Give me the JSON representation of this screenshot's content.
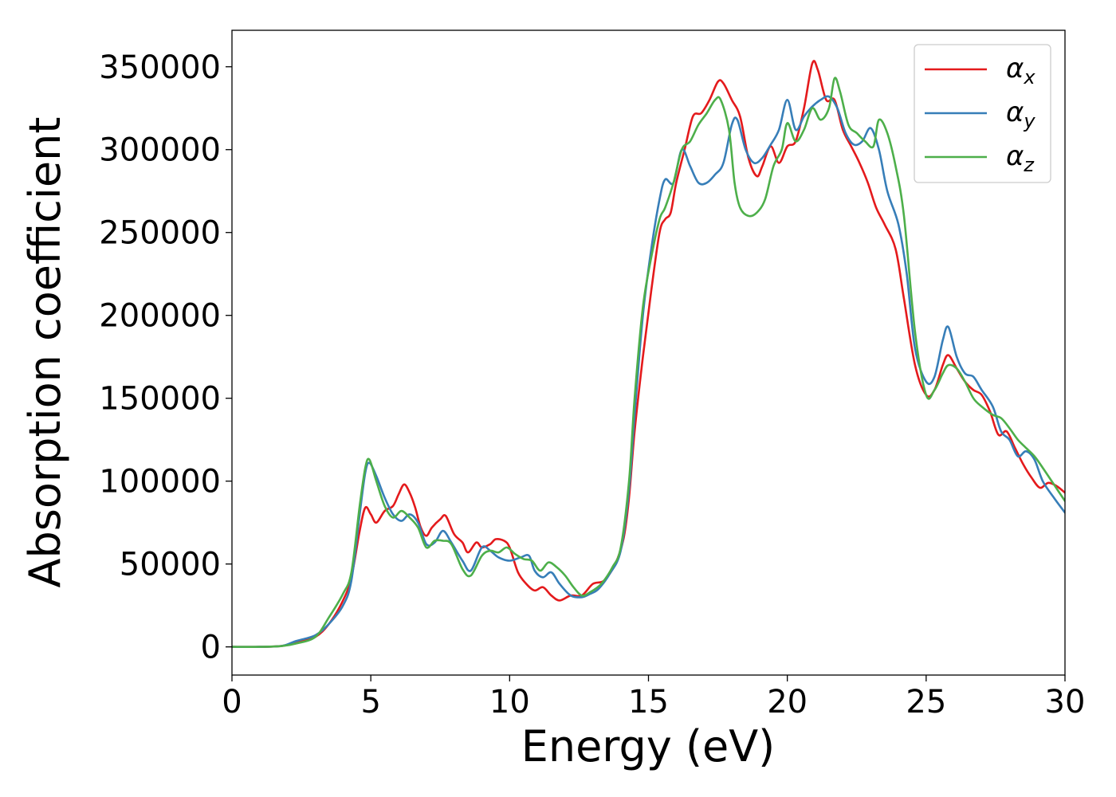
{
  "chart_data": {
    "type": "line",
    "title": "",
    "xlabel": "Energy (eV)",
    "ylabel": "Absorption coefficient",
    "xlim": [
      0,
      30
    ],
    "ylim": [
      -17000,
      372000
    ],
    "x_ticks": [
      0,
      5,
      10,
      15,
      20,
      25,
      30
    ],
    "x_tick_labels": [
      "0",
      "5",
      "10",
      "15",
      "20",
      "25",
      "30"
    ],
    "y_ticks": [
      0,
      50000,
      100000,
      150000,
      200000,
      250000,
      300000,
      350000
    ],
    "y_tick_labels": [
      "0",
      "50000",
      "100000",
      "150000",
      "200000",
      "250000",
      "300000",
      "350000"
    ],
    "grid": false,
    "legend_position": "top-right",
    "series": [
      {
        "name": "α_x",
        "legend_main": "α",
        "legend_sub": "x",
        "color": "#e41a1c",
        "points": [
          [
            0,
            0
          ],
          [
            1,
            0
          ],
          [
            1.8,
            600
          ],
          [
            2.3,
            2500
          ],
          [
            3,
            6000
          ],
          [
            3.5,
            14000
          ],
          [
            4,
            28000
          ],
          [
            4.3,
            42000
          ],
          [
            4.6,
            70000
          ],
          [
            4.8,
            84000
          ],
          [
            5,
            80000
          ],
          [
            5.2,
            75000
          ],
          [
            5.5,
            82000
          ],
          [
            5.8,
            85000
          ],
          [
            6,
            92000
          ],
          [
            6.2,
            98000
          ],
          [
            6.4,
            93000
          ],
          [
            6.6,
            84000
          ],
          [
            6.8,
            72000
          ],
          [
            7,
            67000
          ],
          [
            7.2,
            72000
          ],
          [
            7.5,
            77000
          ],
          [
            7.7,
            79000
          ],
          [
            8,
            68000
          ],
          [
            8.3,
            63000
          ],
          [
            8.5,
            57000
          ],
          [
            8.8,
            63000
          ],
          [
            9,
            60000
          ],
          [
            9.3,
            62000
          ],
          [
            9.5,
            65000
          ],
          [
            9.8,
            64000
          ],
          [
            10,
            60000
          ],
          [
            10.3,
            45000
          ],
          [
            10.6,
            38000
          ],
          [
            10.9,
            34000
          ],
          [
            11.2,
            36000
          ],
          [
            11.5,
            31000
          ],
          [
            11.8,
            28000
          ],
          [
            12.2,
            31000
          ],
          [
            12.6,
            31000
          ],
          [
            13,
            38000
          ],
          [
            13.4,
            40000
          ],
          [
            13.8,
            50000
          ],
          [
            14.1,
            65000
          ],
          [
            14.3,
            90000
          ],
          [
            14.5,
            130000
          ],
          [
            14.8,
            175000
          ],
          [
            15.1,
            215000
          ],
          [
            15.4,
            250000
          ],
          [
            15.6,
            258000
          ],
          [
            15.8,
            262000
          ],
          [
            16,
            280000
          ],
          [
            16.3,
            300000
          ],
          [
            16.6,
            320000
          ],
          [
            16.9,
            322000
          ],
          [
            17.2,
            330000
          ],
          [
            17.5,
            341000
          ],
          [
            17.7,
            340000
          ],
          [
            18,
            330000
          ],
          [
            18.3,
            320000
          ],
          [
            18.6,
            295000
          ],
          [
            18.9,
            284000
          ],
          [
            19.1,
            290000
          ],
          [
            19.4,
            302000
          ],
          [
            19.7,
            292000
          ],
          [
            20,
            302000
          ],
          [
            20.3,
            305000
          ],
          [
            20.6,
            325000
          ],
          [
            20.9,
            352000
          ],
          [
            21.1,
            348000
          ],
          [
            21.4,
            330000
          ],
          [
            21.7,
            330000
          ],
          [
            22,
            312000
          ],
          [
            22.3,
            302000
          ],
          [
            22.6,
            292000
          ],
          [
            22.9,
            280000
          ],
          [
            23.2,
            265000
          ],
          [
            23.5,
            255000
          ],
          [
            23.9,
            240000
          ],
          [
            24.2,
            210000
          ],
          [
            24.6,
            170000
          ],
          [
            25,
            152000
          ],
          [
            25.3,
            155000
          ],
          [
            25.6,
            170000
          ],
          [
            25.8,
            176000
          ],
          [
            26.1,
            168000
          ],
          [
            26.4,
            160000
          ],
          [
            26.7,
            155000
          ],
          [
            27,
            152000
          ],
          [
            27.3,
            142000
          ],
          [
            27.6,
            128000
          ],
          [
            27.9,
            130000
          ],
          [
            28.2,
            120000
          ],
          [
            28.5,
            110000
          ],
          [
            28.8,
            102000
          ],
          [
            29.1,
            96000
          ],
          [
            29.4,
            99000
          ],
          [
            29.7,
            97000
          ],
          [
            30,
            93000
          ]
        ]
      },
      {
        "name": "α_y",
        "legend_main": "α",
        "legend_sub": "y",
        "color": "#377eb8",
        "points": [
          [
            0,
            0
          ],
          [
            1,
            0
          ],
          [
            1.8,
            600
          ],
          [
            2.3,
            3500
          ],
          [
            3,
            7000
          ],
          [
            3.5,
            14000
          ],
          [
            4,
            25000
          ],
          [
            4.3,
            40000
          ],
          [
            4.6,
            80000
          ],
          [
            4.8,
            105000
          ],
          [
            4.95,
            111000
          ],
          [
            5.2,
            103000
          ],
          [
            5.5,
            90000
          ],
          [
            5.8,
            80000
          ],
          [
            6.1,
            76000
          ],
          [
            6.4,
            80000
          ],
          [
            6.7,
            75000
          ],
          [
            7,
            62000
          ],
          [
            7.3,
            63000
          ],
          [
            7.6,
            70000
          ],
          [
            7.9,
            63000
          ],
          [
            8.3,
            52000
          ],
          [
            8.6,
            46000
          ],
          [
            9,
            60000
          ],
          [
            9.3,
            58000
          ],
          [
            9.6,
            54000
          ],
          [
            10,
            52000
          ],
          [
            10.4,
            54000
          ],
          [
            10.7,
            55000
          ],
          [
            10.9,
            46000
          ],
          [
            11.2,
            42000
          ],
          [
            11.5,
            45000
          ],
          [
            11.8,
            38000
          ],
          [
            12.2,
            31000
          ],
          [
            12.6,
            30000
          ],
          [
            12.9,
            32000
          ],
          [
            13.2,
            35000
          ],
          [
            13.6,
            44000
          ],
          [
            14,
            58000
          ],
          [
            14.3,
            95000
          ],
          [
            14.5,
            140000
          ],
          [
            14.8,
            200000
          ],
          [
            15.1,
            240000
          ],
          [
            15.4,
            270000
          ],
          [
            15.6,
            282000
          ],
          [
            15.9,
            280000
          ],
          [
            16.2,
            300000
          ],
          [
            16.5,
            290000
          ],
          [
            16.8,
            280000
          ],
          [
            17.1,
            280000
          ],
          [
            17.4,
            285000
          ],
          [
            17.7,
            292000
          ],
          [
            18,
            315000
          ],
          [
            18.2,
            318000
          ],
          [
            18.5,
            300000
          ],
          [
            18.8,
            292000
          ],
          [
            19.1,
            295000
          ],
          [
            19.4,
            303000
          ],
          [
            19.7,
            312000
          ],
          [
            20,
            330000
          ],
          [
            20.3,
            312000
          ],
          [
            20.6,
            320000
          ],
          [
            20.9,
            326000
          ],
          [
            21.2,
            330000
          ],
          [
            21.5,
            332000
          ],
          [
            21.8,
            325000
          ],
          [
            22.1,
            310000
          ],
          [
            22.4,
            303000
          ],
          [
            22.7,
            305000
          ],
          [
            23,
            313000
          ],
          [
            23.3,
            300000
          ],
          [
            23.6,
            275000
          ],
          [
            24,
            255000
          ],
          [
            24.3,
            225000
          ],
          [
            24.6,
            180000
          ],
          [
            25,
            160000
          ],
          [
            25.3,
            163000
          ],
          [
            25.6,
            185000
          ],
          [
            25.8,
            193000
          ],
          [
            26.1,
            175000
          ],
          [
            26.4,
            165000
          ],
          [
            26.7,
            163000
          ],
          [
            27,
            155000
          ],
          [
            27.4,
            145000
          ],
          [
            27.7,
            130000
          ],
          [
            28,
            125000
          ],
          [
            28.3,
            115000
          ],
          [
            28.6,
            118000
          ],
          [
            28.9,
            113000
          ],
          [
            29.2,
            100000
          ],
          [
            29.6,
            90000
          ],
          [
            30,
            81000
          ]
        ]
      },
      {
        "name": "α_z",
        "legend_main": "α",
        "legend_sub": "z",
        "color": "#4daf4a",
        "points": [
          [
            0,
            0
          ],
          [
            1,
            0
          ],
          [
            1.8,
            500
          ],
          [
            2.3,
            2000
          ],
          [
            3,
            6000
          ],
          [
            3.5,
            18000
          ],
          [
            4,
            32000
          ],
          [
            4.3,
            45000
          ],
          [
            4.6,
            85000
          ],
          [
            4.8,
            108000
          ],
          [
            4.95,
            113000
          ],
          [
            5.2,
            100000
          ],
          [
            5.5,
            85000
          ],
          [
            5.8,
            78000
          ],
          [
            6.1,
            82000
          ],
          [
            6.4,
            78000
          ],
          [
            6.7,
            72000
          ],
          [
            7,
            60000
          ],
          [
            7.3,
            64000
          ],
          [
            7.6,
            64000
          ],
          [
            7.9,
            62000
          ],
          [
            8.3,
            47000
          ],
          [
            8.6,
            43000
          ],
          [
            9,
            55000
          ],
          [
            9.3,
            58000
          ],
          [
            9.6,
            57000
          ],
          [
            9.9,
            60000
          ],
          [
            10.2,
            56000
          ],
          [
            10.5,
            53000
          ],
          [
            10.8,
            52000
          ],
          [
            11.1,
            46000
          ],
          [
            11.4,
            51000
          ],
          [
            11.7,
            48000
          ],
          [
            12,
            43000
          ],
          [
            12.3,
            36000
          ],
          [
            12.6,
            31000
          ],
          [
            12.9,
            33000
          ],
          [
            13.3,
            38000
          ],
          [
            13.7,
            48000
          ],
          [
            14,
            60000
          ],
          [
            14.3,
            100000
          ],
          [
            14.5,
            150000
          ],
          [
            14.8,
            205000
          ],
          [
            15.1,
            235000
          ],
          [
            15.4,
            258000
          ],
          [
            15.6,
            265000
          ],
          [
            15.9,
            280000
          ],
          [
            16.2,
            300000
          ],
          [
            16.5,
            305000
          ],
          [
            16.8,
            315000
          ],
          [
            17.1,
            322000
          ],
          [
            17.4,
            330000
          ],
          [
            17.6,
            330000
          ],
          [
            17.9,
            312000
          ],
          [
            18.1,
            280000
          ],
          [
            18.3,
            265000
          ],
          [
            18.6,
            260000
          ],
          [
            18.9,
            262000
          ],
          [
            19.2,
            270000
          ],
          [
            19.5,
            290000
          ],
          [
            19.8,
            300000
          ],
          [
            20,
            316000
          ],
          [
            20.3,
            305000
          ],
          [
            20.6,
            312000
          ],
          [
            20.9,
            325000
          ],
          [
            21.2,
            318000
          ],
          [
            21.5,
            325000
          ],
          [
            21.7,
            343000
          ],
          [
            21.9,
            335000
          ],
          [
            22.2,
            315000
          ],
          [
            22.5,
            310000
          ],
          [
            22.8,
            305000
          ],
          [
            23.1,
            302000
          ],
          [
            23.3,
            318000
          ],
          [
            23.6,
            310000
          ],
          [
            23.9,
            290000
          ],
          [
            24.2,
            260000
          ],
          [
            24.6,
            190000
          ],
          [
            25,
            152000
          ],
          [
            25.3,
            155000
          ],
          [
            25.6,
            165000
          ],
          [
            25.8,
            170000
          ],
          [
            26.1,
            168000
          ],
          [
            26.4,
            160000
          ],
          [
            26.7,
            150000
          ],
          [
            27,
            145000
          ],
          [
            27.4,
            140000
          ],
          [
            27.7,
            138000
          ],
          [
            28,
            132000
          ],
          [
            28.3,
            125000
          ],
          [
            28.6,
            120000
          ],
          [
            28.9,
            115000
          ],
          [
            29.2,
            108000
          ],
          [
            29.6,
            98000
          ],
          [
            30,
            88000
          ]
        ]
      }
    ]
  }
}
